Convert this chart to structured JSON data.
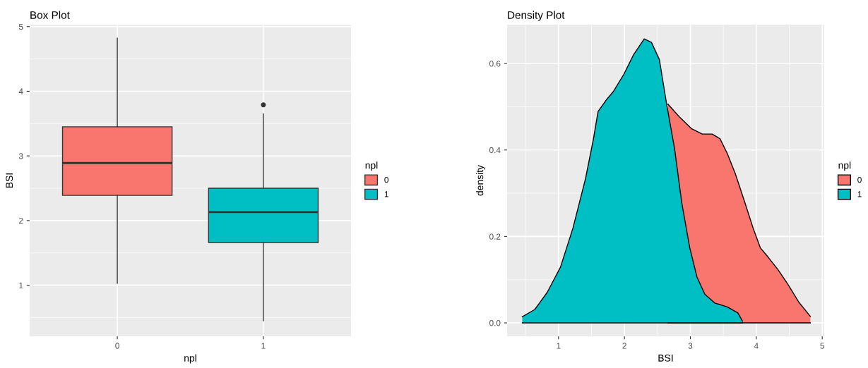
{
  "chart_data": [
    {
      "type": "box",
      "title": "Box Plot",
      "xlabel": "npl",
      "ylabel": "BSI",
      "legend_title": "npl",
      "legend": "right",
      "grid": true,
      "categories": [
        "0",
        "1"
      ],
      "series": [
        {
          "name": "0",
          "color": "#f8766d",
          "boxes": [
            {
              "low": 1.03,
              "q1": 2.39,
              "median": 2.89,
              "q3": 3.45,
              "high": 4.82
            },
            null
          ]
        },
        {
          "name": "1",
          "color": "#00bfc4",
          "boxes": [
            null,
            {
              "low": 0.45,
              "q1": 1.66,
              "median": 2.13,
              "q3": 2.5,
              "high": 3.65,
              "outliers": [
                3.79
              ]
            }
          ]
        }
      ],
      "ylim": [
        0.21,
        5.03
      ],
      "yticks": [
        1,
        2,
        3,
        4,
        5
      ]
    },
    {
      "type": "area",
      "title": "Density Plot",
      "xlabel": "BSI",
      "ylabel": "density",
      "legend_title": "npl",
      "legend": "right",
      "grid": true,
      "series": [
        {
          "name": "0",
          "color": "#f8766d",
          "x": [
            2.66,
            2.83,
            3.02,
            3.18,
            3.33,
            3.45,
            3.56,
            3.68,
            3.83,
            3.95,
            4.06,
            4.18,
            4.33,
            4.48,
            4.64,
            4.82
          ],
          "values": [
            0.506,
            0.477,
            0.449,
            0.437,
            0.437,
            0.426,
            0.392,
            0.346,
            0.277,
            0.22,
            0.174,
            0.152,
            0.123,
            0.089,
            0.049,
            0.015
          ]
        },
        {
          "name": "1",
          "color": "#00bfc4",
          "x": [
            0.45,
            0.64,
            0.83,
            1.03,
            1.22,
            1.41,
            1.53,
            1.6,
            1.72,
            1.83,
            1.99,
            2.14,
            2.3,
            2.41,
            2.53,
            2.64,
            2.76,
            2.87,
            2.99,
            3.1,
            3.22,
            3.37,
            3.56,
            3.72,
            3.79
          ],
          "values": [
            0.014,
            0.031,
            0.071,
            0.129,
            0.22,
            0.334,
            0.426,
            0.489,
            0.515,
            0.535,
            0.575,
            0.621,
            0.657,
            0.649,
            0.609,
            0.506,
            0.403,
            0.277,
            0.174,
            0.106,
            0.066,
            0.046,
            0.037,
            0.023,
            0.004
          ]
        }
      ],
      "xlim": [
        0.22,
        5.03
      ],
      "xticks": [
        1,
        2,
        3,
        4,
        5
      ],
      "ylim": [
        -0.031,
        0.69
      ],
      "yticks": [
        {
          "value": 0,
          "label": "0.0"
        },
        {
          "value": 0.2,
          "label": "0.2"
        },
        {
          "value": 0.4,
          "label": "0.4"
        },
        {
          "value": 0.6,
          "label": "0.6"
        }
      ]
    }
  ]
}
